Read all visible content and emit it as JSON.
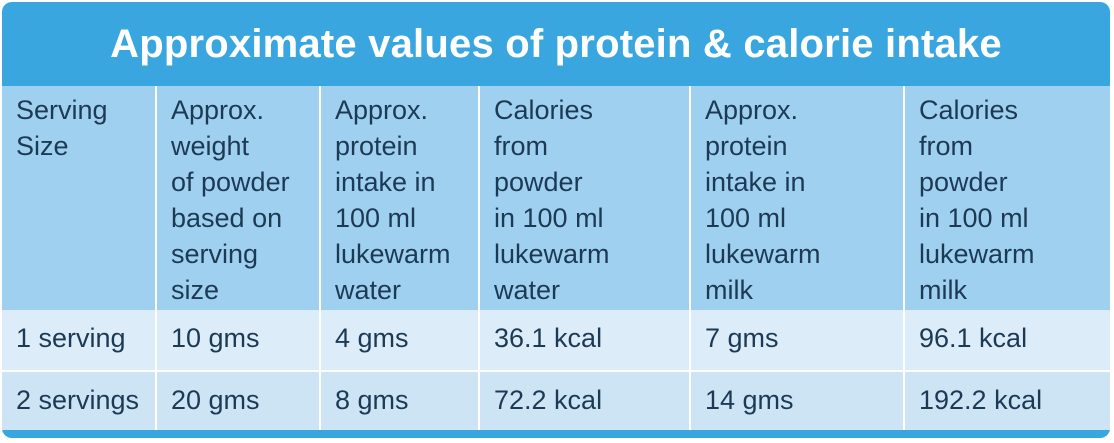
{
  "title": "Approximate values of protein & calorie intake",
  "columns": [
    {
      "lines": [
        "Serving",
        "Size"
      ]
    },
    {
      "lines": [
        "Approx.",
        "weight",
        "of powder",
        "based on",
        "serving",
        "size"
      ]
    },
    {
      "lines": [
        "Approx.",
        "protein",
        "intake in",
        "100 ml",
        "lukewarm",
        "water"
      ]
    },
    {
      "lines": [
        "Calories",
        "from",
        "powder",
        "in 100 ml",
        "lukewarm",
        "water"
      ]
    },
    {
      "lines": [
        "Approx.",
        "protein",
        "intake in",
        "100 ml",
        "lukewarm",
        "milk"
      ]
    },
    {
      "lines": [
        "Calories",
        "from",
        "powder",
        "in 100 ml",
        "lukewarm",
        "milk"
      ]
    }
  ],
  "rows": [
    [
      "1 serving",
      "10 gms",
      "4 gms",
      "36.1 kcal",
      "7 gms",
      "96.1 kcal"
    ],
    [
      "2 servings",
      "20 gms",
      "8 gms",
      "72.2 kcal",
      "14 gms",
      "192.2 kcal"
    ]
  ],
  "colors": {
    "title_bar": "#3aa6df",
    "header_bg": "#9fd0f0",
    "row_bg": "#dcecf8",
    "text": "#1d3a55"
  }
}
